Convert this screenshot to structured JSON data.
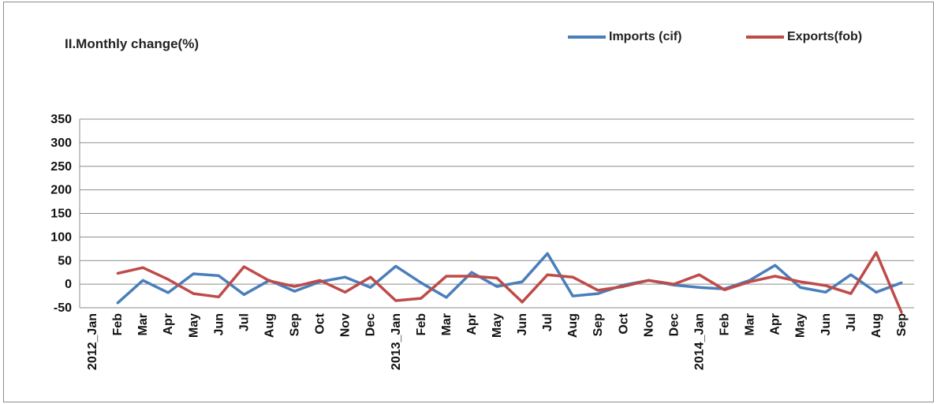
{
  "chart_data": {
    "type": "line",
    "title": "II.Monthly  change(%)",
    "categories": [
      "2012_Jan",
      "Feb",
      "Mar",
      "Apr",
      "May",
      "Jun",
      "Jul",
      "Aug",
      "Sep",
      "Oct",
      "Nov",
      "Dec",
      "2013_Jan",
      "Feb",
      "Mar",
      "Apr",
      "May",
      "Jun",
      "Jul",
      "Aug",
      "Sep",
      "Oct",
      "Nov",
      "Dec",
      "2014_Jan",
      "Feb",
      "Mar",
      "Apr",
      "May",
      "Jun",
      "Jul",
      "Aug",
      "Sep"
    ],
    "yticks": [
      "350",
      "300",
      "250",
      "200",
      "150",
      "100",
      "50",
      "0",
      "-50"
    ],
    "ylim": [
      -50,
      350
    ],
    "grid": true,
    "legend_position": "top-right",
    "series": [
      {
        "name": "Imports (cif)",
        "color": "#4a7ebb",
        "values": [
          null,
          -40,
          8,
          -18,
          22,
          18,
          -22,
          8,
          -15,
          5,
          15,
          -7,
          38,
          3,
          -28,
          25,
          -5,
          5,
          65,
          -25,
          -20,
          -2,
          8,
          -2,
          -7,
          -10,
          8,
          40,
          -7,
          -17,
          20,
          -17,
          3
        ]
      },
      {
        "name": "Exports(fob)",
        "color": "#be4b48",
        "values": [
          null,
          23,
          35,
          10,
          -20,
          -27,
          37,
          7,
          -5,
          8,
          -17,
          15,
          -35,
          -30,
          17,
          17,
          13,
          -38,
          20,
          15,
          -13,
          -5,
          8,
          0,
          20,
          -12,
          5,
          17,
          5,
          -3,
          -20,
          67,
          -60
        ]
      }
    ]
  }
}
